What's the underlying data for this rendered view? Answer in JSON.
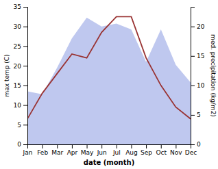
{
  "chart_data": {
    "type": "line",
    "categories": [
      "Jan",
      "Feb",
      "Mar",
      "Apr",
      "May",
      "Jun",
      "Jul",
      "Aug",
      "Sep",
      "Oct",
      "Nov",
      "Dec"
    ],
    "xlabel": "date (month)",
    "ylabel": "max temp (C)",
    "y2label": "med. precipitation (kg/m2)",
    "ylim": [
      0,
      35
    ],
    "yticks": [
      0,
      5,
      10,
      15,
      20,
      25,
      30,
      35
    ],
    "y2lim": [
      0,
      23.33
    ],
    "y2ticks": [
      0,
      5,
      10,
      15,
      20
    ],
    "series": [
      {
        "type": "area",
        "axis": "y2",
        "color": "#bfc8ef",
        "values": [
          9.0,
          8.5,
          13.0,
          18.0,
          21.5,
          20.0,
          20.5,
          19.5,
          14.0,
          19.5,
          13.5,
          10.5
        ]
      },
      {
        "type": "line",
        "color": "#993333",
        "values": [
          6.5,
          13.0,
          18.0,
          23.0,
          22.0,
          28.5,
          32.5,
          32.5,
          22.0,
          15.0,
          9.5,
          6.5
        ]
      }
    ]
  }
}
